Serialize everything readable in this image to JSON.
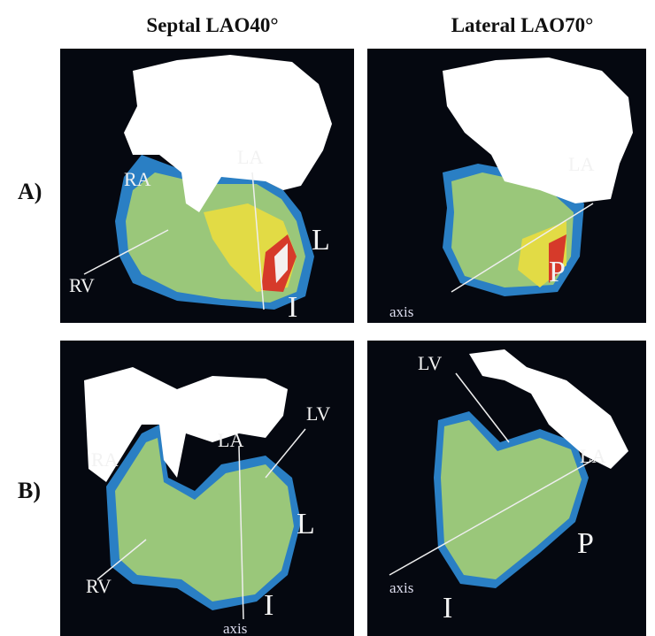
{
  "headers": [
    "Septal LAO40°",
    "Lateral LAO70°"
  ],
  "rows": [
    {
      "label": "A)",
      "panels": [
        {
          "labels": [
            "RA",
            "LA",
            "L",
            "RV",
            "I"
          ]
        },
        {
          "labels": [
            "LA",
            "P",
            "axis"
          ]
        }
      ]
    },
    {
      "label": "B)",
      "panels": [
        {
          "labels": [
            "RA",
            "LA",
            "LV",
            "L",
            "RV",
            "axis",
            "I"
          ]
        },
        {
          "labels": [
            "LV",
            "LA",
            "P",
            "axis",
            "I"
          ]
        }
      ]
    }
  ]
}
